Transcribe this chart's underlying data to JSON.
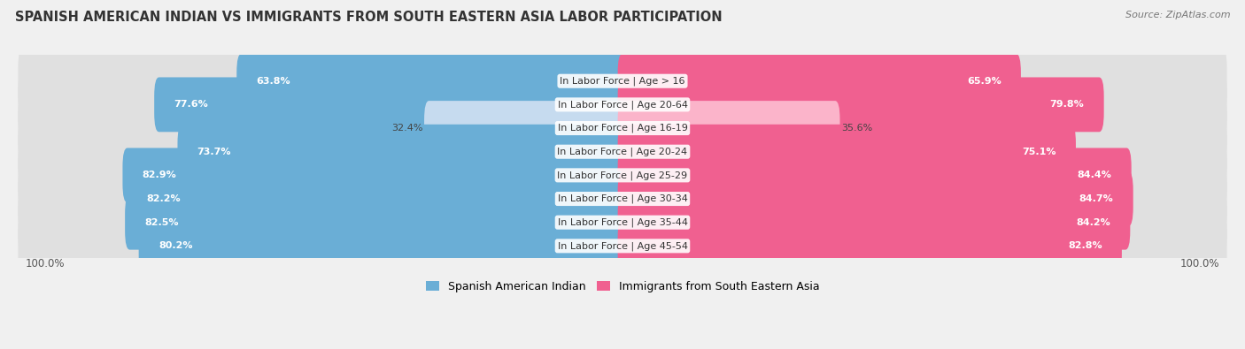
{
  "title": "SPANISH AMERICAN INDIAN VS IMMIGRANTS FROM SOUTH EASTERN ASIA LABOR PARTICIPATION",
  "source": "Source: ZipAtlas.com",
  "categories": [
    "In Labor Force | Age > 16",
    "In Labor Force | Age 20-64",
    "In Labor Force | Age 16-19",
    "In Labor Force | Age 20-24",
    "In Labor Force | Age 25-29",
    "In Labor Force | Age 30-34",
    "In Labor Force | Age 35-44",
    "In Labor Force | Age 45-54"
  ],
  "left_values": [
    63.8,
    77.6,
    32.4,
    73.7,
    82.9,
    82.2,
    82.5,
    80.2
  ],
  "right_values": [
    65.9,
    79.8,
    35.6,
    75.1,
    84.4,
    84.7,
    84.2,
    82.8
  ],
  "left_color": "#6aaed6",
  "right_color": "#f06090",
  "left_color_light": "#c6dbef",
  "right_color_light": "#fbb4ca",
  "left_label": "Spanish American Indian",
  "right_label": "Immigrants from South Eastern Asia",
  "max_value": 100.0,
  "bg_color": "#f0f0f0",
  "row_bg_color": "#e0e0e0",
  "title_fontsize": 10.5,
  "bar_fontsize": 8.0,
  "legend_fontsize": 9.0,
  "axis_fontsize": 8.5
}
